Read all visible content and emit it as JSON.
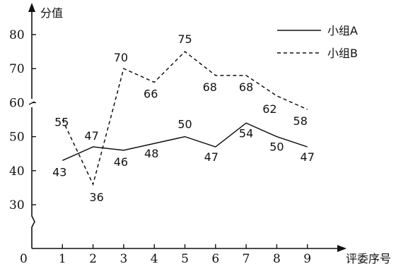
{
  "chart_data": {
    "type": "line",
    "ylabel": "分值",
    "xlabel": "评委序号",
    "origin_label": "0",
    "x": [
      1,
      2,
      3,
      4,
      5,
      6,
      7,
      8,
      9
    ],
    "x_ticks": [
      "1",
      "2",
      "3",
      "4",
      "5",
      "6",
      "7",
      "8",
      "9"
    ],
    "y_ticks": [
      "30",
      "40",
      "50",
      "60",
      "70",
      "80"
    ],
    "y_tick_values": [
      30,
      40,
      50,
      60,
      70,
      80
    ],
    "ylim": [
      30,
      80
    ],
    "axis_break": true,
    "grid": false,
    "legend_position": "top-right",
    "series": [
      {
        "name": "小组A",
        "style": "solid",
        "values": [
          43,
          47,
          46,
          48,
          50,
          47,
          54,
          50,
          47
        ]
      },
      {
        "name": "小组B",
        "style": "dashed",
        "values": [
          55,
          36,
          70,
          66,
          75,
          68,
          68,
          62,
          58
        ]
      }
    ]
  }
}
